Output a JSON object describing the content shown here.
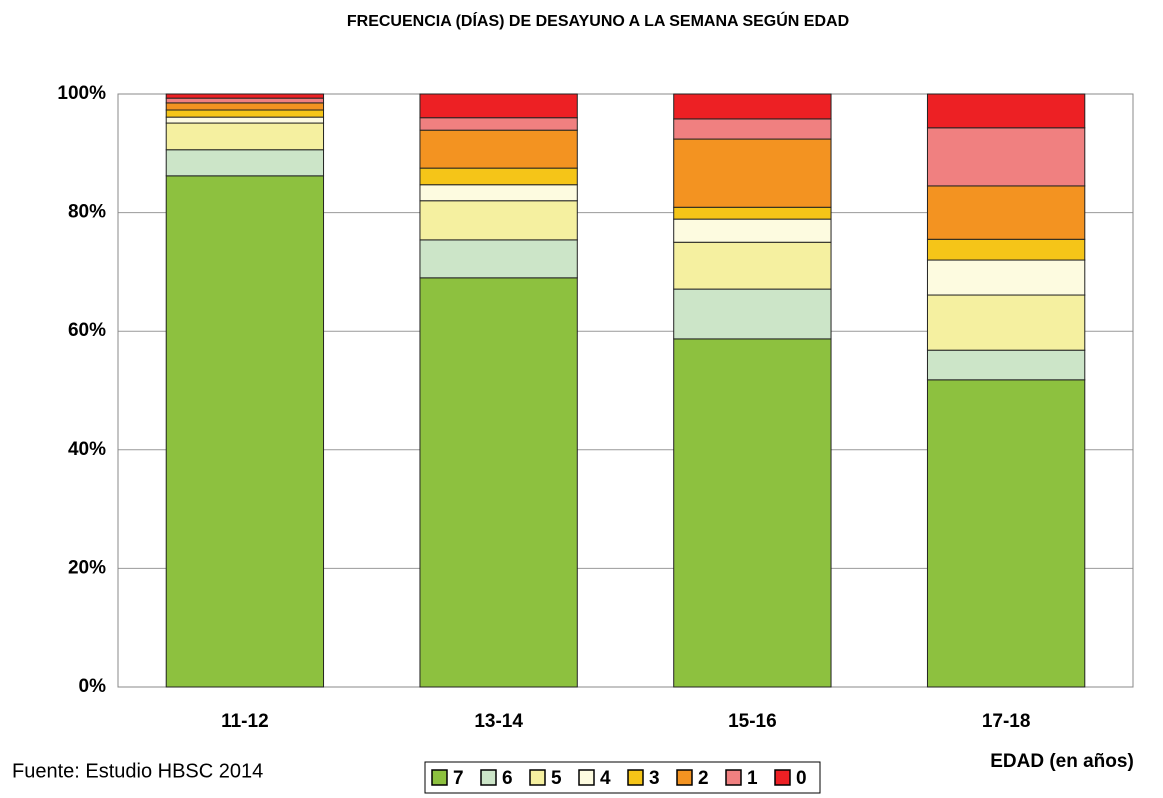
{
  "chart_data": {
    "type": "stacked_bar",
    "title": "FRECUENCIA (DÍAS) DE DESAYUNO A LA SEMANA SEGÚN EDAD",
    "x_label": "EDAD (en años)",
    "source": "Fuente: Estudio HBSC 2014",
    "categories": [
      "11-12",
      "13-14",
      "15-16",
      "17-18"
    ],
    "series": [
      {
        "name": "7",
        "color": "#8dc13f",
        "values": [
          86.2,
          69.0,
          58.7,
          51.8
        ]
      },
      {
        "name": "6",
        "color": "#cce5c8",
        "values": [
          4.4,
          6.4,
          8.4,
          5.0
        ]
      },
      {
        "name": "5",
        "color": "#f5f0a0",
        "values": [
          4.5,
          6.6,
          7.9,
          9.3
        ]
      },
      {
        "name": "4",
        "color": "#fdfbe0",
        "values": [
          1.0,
          2.7,
          3.9,
          5.9
        ]
      },
      {
        "name": "3",
        "color": "#f5c518",
        "values": [
          1.2,
          2.8,
          2.0,
          3.5
        ]
      },
      {
        "name": "2",
        "color": "#f39321",
        "values": [
          1.2,
          6.4,
          11.5,
          9.0
        ]
      },
      {
        "name": "1",
        "color": "#f08080",
        "values": [
          0.8,
          2.1,
          3.4,
          9.8
        ]
      },
      {
        "name": "0",
        "color": "#ed2024",
        "values": [
          0.7,
          4.0,
          4.2,
          5.7
        ]
      }
    ],
    "ylim": [
      0,
      100
    ],
    "yticks": [
      {
        "value": 0,
        "label": "0%"
      },
      {
        "value": 20,
        "label": "20%"
      },
      {
        "value": 40,
        "label": "40%"
      },
      {
        "value": 60,
        "label": "60%"
      },
      {
        "value": 80,
        "label": "80%"
      },
      {
        "value": 100,
        "label": "100%"
      }
    ],
    "grid": true
  }
}
